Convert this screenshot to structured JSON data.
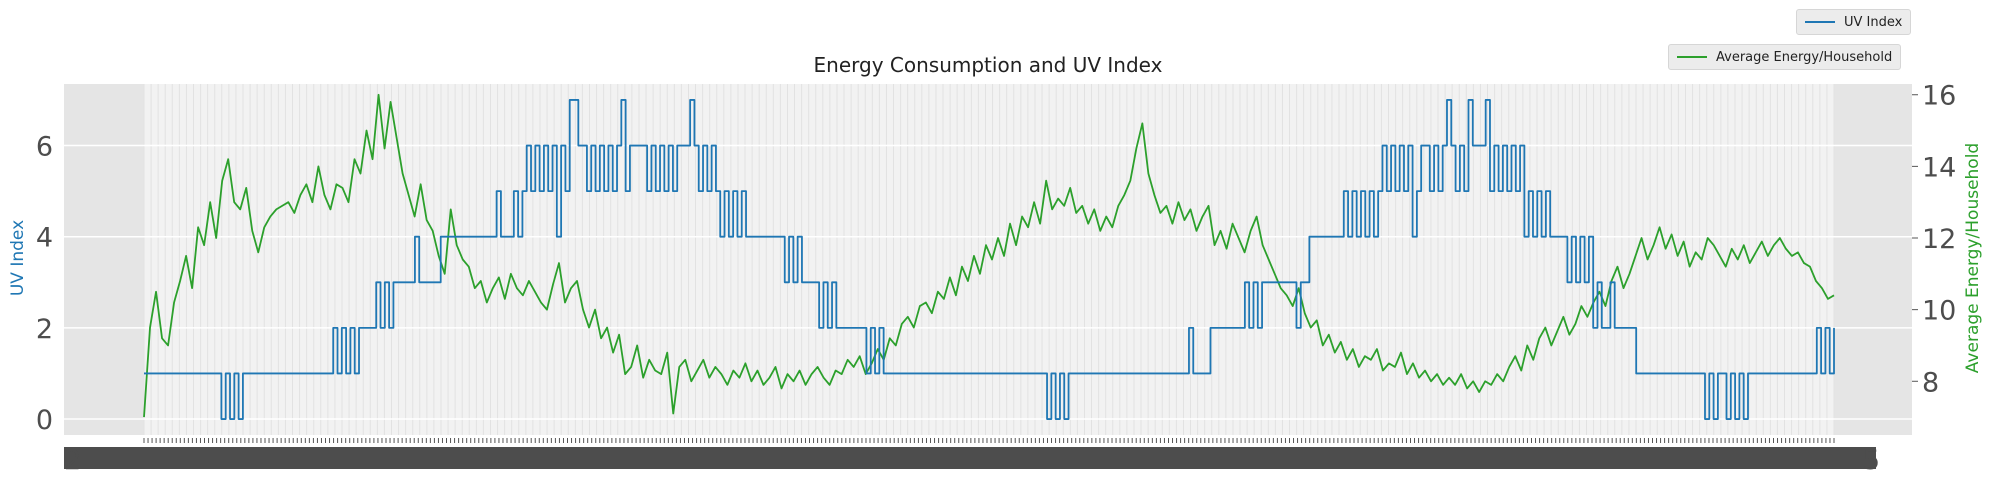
{
  "chart_data": {
    "type": "line",
    "title": "Energy Consumption and UV Index",
    "x_tick_first_label": "2",
    "x_tick_last_label": "5",
    "x": "one point per day across roughly 1000 consecutive days (dense unreadable tick labels)",
    "series": [
      {
        "name": "UV Index",
        "axis": "left",
        "color": "#1f77b4",
        "values": [
          1,
          1,
          1,
          1,
          1,
          1,
          1,
          1,
          1,
          1,
          1,
          1,
          1,
          1,
          1,
          1,
          1,
          1,
          0,
          1,
          0,
          1,
          0,
          1,
          1,
          1,
          1,
          1,
          1,
          1,
          1,
          1,
          1,
          1,
          1,
          1,
          1,
          1,
          1,
          1,
          1,
          1,
          1,
          1,
          2,
          1,
          2,
          1,
          2,
          1,
          2,
          2,
          2,
          2,
          3,
          2,
          3,
          2,
          3,
          3,
          3,
          3,
          3,
          4,
          3,
          3,
          3,
          3,
          3,
          4,
          4,
          4,
          4,
          4,
          4,
          4,
          4,
          4,
          4,
          4,
          4,
          4,
          5,
          4,
          4,
          4,
          5,
          4,
          5,
          6,
          5,
          6,
          5,
          6,
          5,
          6,
          4,
          6,
          5,
          7,
          7,
          6,
          6,
          5,
          6,
          5,
          6,
          5,
          6,
          5,
          6,
          7,
          5,
          6,
          6,
          6,
          6,
          5,
          6,
          5,
          6,
          5,
          6,
          5,
          6,
          6,
          6,
          7,
          6,
          5,
          6,
          5,
          6,
          5,
          4,
          5,
          4,
          5,
          4,
          5,
          4,
          4,
          4,
          4,
          4,
          4,
          4,
          4,
          4,
          3,
          4,
          3,
          4,
          3,
          3,
          3,
          3,
          2,
          3,
          2,
          3,
          2,
          2,
          2,
          2,
          2,
          2,
          2,
          1,
          2,
          1,
          2,
          1,
          1,
          1,
          1,
          1,
          1,
          1,
          1,
          1,
          1,
          1,
          1,
          1,
          1,
          1,
          1,
          1,
          1,
          1,
          1,
          1,
          1,
          1,
          1,
          1,
          1,
          1,
          1,
          1,
          1,
          1,
          1,
          1,
          1,
          1,
          1,
          1,
          1,
          0,
          1,
          0,
          1,
          0,
          1,
          1,
          1,
          1,
          1,
          1,
          1,
          1,
          1,
          1,
          1,
          1,
          1,
          1,
          1,
          1,
          1,
          1,
          1,
          1,
          1,
          1,
          1,
          1,
          1,
          1,
          1,
          1,
          2,
          1,
          1,
          1,
          1,
          2,
          2,
          2,
          2,
          2,
          2,
          2,
          2,
          3,
          2,
          3,
          2,
          3,
          3,
          3,
          3,
          3,
          3,
          3,
          3,
          2,
          3,
          3,
          4,
          4,
          4,
          4,
          4,
          4,
          4,
          4,
          5,
          4,
          5,
          4,
          5,
          4,
          5,
          4,
          5,
          6,
          5,
          6,
          5,
          6,
          5,
          6,
          4,
          5,
          6,
          6,
          5,
          6,
          5,
          6,
          7,
          6,
          5,
          6,
          5,
          7,
          6,
          6,
          6,
          7,
          5,
          6,
          5,
          6,
          5,
          6,
          5,
          6,
          4,
          5,
          4,
          5,
          4,
          5,
          4,
          4,
          4,
          4,
          3,
          4,
          3,
          4,
          3,
          4,
          2,
          3,
          2,
          2,
          3,
          2,
          2,
          2,
          2,
          2,
          1,
          1,
          1,
          1,
          1,
          1,
          1,
          1,
          1,
          1,
          1,
          1,
          1,
          1,
          1,
          1,
          0,
          1,
          0,
          1,
          1,
          0,
          1,
          0,
          1,
          0,
          1,
          1,
          1,
          1,
          1,
          1,
          1,
          1,
          1,
          1,
          1,
          1,
          1,
          1,
          1,
          1,
          2,
          1,
          2,
          1,
          2
        ],
        "ylim": [
          -0.35,
          7.35
        ],
        "yticks": [
          0,
          2,
          4,
          6
        ]
      },
      {
        "name": "Average Energy/Household",
        "axis": "right",
        "color": "#2ca02c",
        "values": [
          7.0,
          9.5,
          10.5,
          9.2,
          9.0,
          10.2,
          10.8,
          11.5,
          10.6,
          12.3,
          11.8,
          13.0,
          12.0,
          13.6,
          14.2,
          13.0,
          12.8,
          13.4,
          12.2,
          11.6,
          12.3,
          12.6,
          12.8,
          12.9,
          13.0,
          12.7,
          13.2,
          13.5,
          13.0,
          14.0,
          13.2,
          12.8,
          13.5,
          13.4,
          13.0,
          14.2,
          13.8,
          15.0,
          14.2,
          16.0,
          14.5,
          15.8,
          14.8,
          13.8,
          13.2,
          12.6,
          13.5,
          12.5,
          12.2,
          11.5,
          11.0,
          12.8,
          11.8,
          11.4,
          11.2,
          10.6,
          10.8,
          10.2,
          10.6,
          10.9,
          10.3,
          11.0,
          10.6,
          10.4,
          10.8,
          10.5,
          10.2,
          10.0,
          10.7,
          11.3,
          10.2,
          10.6,
          10.8,
          10.0,
          9.5,
          10.0,
          9.2,
          9.5,
          8.8,
          9.3,
          8.2,
          8.4,
          9.0,
          8.1,
          8.6,
          8.3,
          8.2,
          8.8,
          7.1,
          8.4,
          8.6,
          8.0,
          8.3,
          8.6,
          8.1,
          8.4,
          8.2,
          7.9,
          8.3,
          8.1,
          8.5,
          8.0,
          8.3,
          7.9,
          8.1,
          8.4,
          7.8,
          8.2,
          8.0,
          8.3,
          7.9,
          8.2,
          8.4,
          8.1,
          7.9,
          8.3,
          8.2,
          8.6,
          8.4,
          8.7,
          8.2,
          8.5,
          8.9,
          8.6,
          9.2,
          9.0,
          9.6,
          9.8,
          9.5,
          10.1,
          10.2,
          9.9,
          10.5,
          10.3,
          10.9,
          10.4,
          11.2,
          10.8,
          11.5,
          11.0,
          11.8,
          11.4,
          12.0,
          11.5,
          12.4,
          11.8,
          12.6,
          12.3,
          13.0,
          12.4,
          13.6,
          12.8,
          13.1,
          12.9,
          13.4,
          12.7,
          12.9,
          12.4,
          12.8,
          12.2,
          12.6,
          12.3,
          12.9,
          13.2,
          13.6,
          14.5,
          15.2,
          13.8,
          13.2,
          12.7,
          12.9,
          12.4,
          13.0,
          12.5,
          12.8,
          12.2,
          12.6,
          12.9,
          11.8,
          12.2,
          11.7,
          12.4,
          12.0,
          11.6,
          12.2,
          12.6,
          11.8,
          11.4,
          11.0,
          10.6,
          10.4,
          10.1,
          10.6,
          9.9,
          9.5,
          9.7,
          9.0,
          9.3,
          8.8,
          9.1,
          8.6,
          8.9,
          8.4,
          8.7,
          8.6,
          8.9,
          8.3,
          8.5,
          8.4,
          8.8,
          8.2,
          8.5,
          8.1,
          8.3,
          8.0,
          8.2,
          7.9,
          8.1,
          7.9,
          8.2,
          7.8,
          8.0,
          7.7,
          8.0,
          7.9,
          8.2,
          8.0,
          8.4,
          8.7,
          8.3,
          9.0,
          8.6,
          9.2,
          9.5,
          9.0,
          9.4,
          9.8,
          9.3,
          9.6,
          10.1,
          9.8,
          10.2,
          10.5,
          10.1,
          10.8,
          11.2,
          10.6,
          11.0,
          11.5,
          12.0,
          11.4,
          11.8,
          12.3,
          11.7,
          12.1,
          11.5,
          11.9,
          11.2,
          11.6,
          11.4,
          12.0,
          11.8,
          11.5,
          11.2,
          11.7,
          11.4,
          11.8,
          11.3,
          11.6,
          11.9,
          11.5,
          11.8,
          12.0,
          11.7,
          11.5,
          11.6,
          11.3,
          11.2,
          10.8,
          10.6,
          10.3,
          10.4
        ]
      }
    ],
    "y_right_lim": [
      6.5,
      16.3
    ],
    "y_right_ticks": [
      8,
      10,
      12,
      14,
      16
    ],
    "grid": true,
    "legend_placement": "top-right, outside plot (two separate boxes)"
  }
}
